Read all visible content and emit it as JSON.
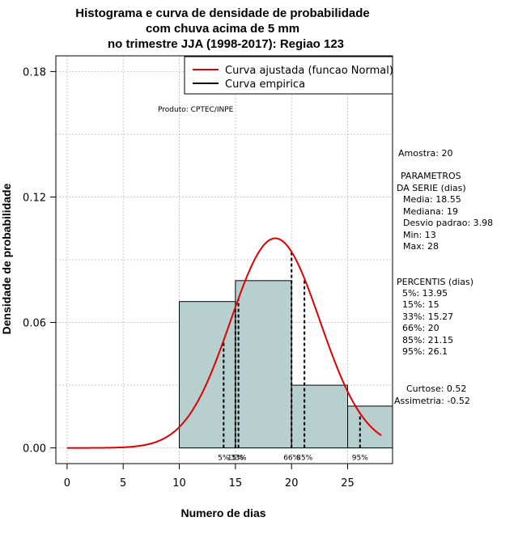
{
  "chart_data": {
    "type": "bar",
    "title_lines": [
      "Histograma e curva de densidade de probabilidade",
      "com chuva acima de 5 mm",
      "no trimestre JJA (1998-2017): Regiao 123"
    ],
    "xlabel": "Numero de dias",
    "ylabel": "Densidade de probabilidade",
    "xlim": [
      -1,
      29
    ],
    "ylim": [
      -0.0075,
      0.1875
    ],
    "x_ticks": [
      0,
      5,
      10,
      15,
      20,
      25
    ],
    "y_ticks": [
      0.0,
      0.06,
      0.12,
      0.18
    ],
    "y_tick_labels": [
      "0.00",
      "0.06",
      "0.12",
      "0.18"
    ],
    "bins": [
      {
        "start": 10,
        "end": 15,
        "density": 0.07
      },
      {
        "start": 15,
        "end": 20,
        "density": 0.08
      },
      {
        "start": 20,
        "end": 25,
        "density": 0.03
      },
      {
        "start": 25,
        "end": 29,
        "density": 0.02
      }
    ],
    "bar_color": "#b7cfcf",
    "curve_color": "#dd0000",
    "fitted_normal": {
      "mean": 18.55,
      "sd": 3.98,
      "x_from": 0,
      "x_to": 28
    },
    "percentile_marks": [
      {
        "label": "5%",
        "x": 13.95
      },
      {
        "label": "15%",
        "x": 15
      },
      {
        "label": "33%",
        "x": 15.27
      },
      {
        "label": "66%",
        "x": 20
      },
      {
        "label": "85%",
        "x": 21.15
      },
      {
        "label": "95%",
        "x": 26.1
      }
    ],
    "legend": {
      "position": "top-right",
      "entries": [
        {
          "label": "Curva ajustada (funcao Normal)",
          "color": "#dd0000"
        },
        {
          "label": "Curva empirica",
          "color": "#000000"
        }
      ]
    },
    "product_note": "Produto: CPTEC/INPE",
    "grid": true
  },
  "stats_panel": {
    "amostra": "Amostra: 20",
    "params_title_1": "PARAMETROS",
    "params_title_2": "DA SERIE (dias)",
    "params": [
      "Media: 18.55",
      "Mediana: 19",
      "Desvio padrao: 3.98",
      "Min: 13",
      "Max: 28"
    ],
    "percentis_title": "PERCENTIS (dias)",
    "percentis": [
      "5%: 13.95",
      "15%: 15",
      "33%: 15.27",
      "66%: 20",
      "85%: 21.15",
      "95%: 26.1"
    ],
    "curtose": "Curtose: 0.52",
    "assimetria": "Assimetria: -0.52"
  }
}
